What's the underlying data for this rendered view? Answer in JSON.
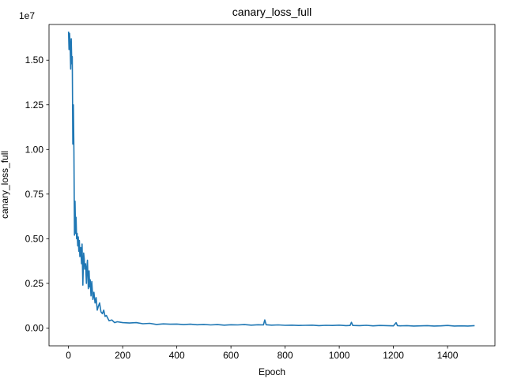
{
  "chart_data": {
    "type": "line",
    "title": "canary_loss_full",
    "xlabel": "Epoch",
    "ylabel": "canary_loss_full",
    "y_offset_text": "1e7",
    "xlim": [
      -72,
      1575
    ],
    "ylim": [
      -1000000,
      17000000
    ],
    "x_ticks": [
      0,
      200,
      400,
      600,
      800,
      1000,
      1200,
      1400
    ],
    "x_tick_labels": [
      "0",
      "200",
      "400",
      "600",
      "800",
      "1000",
      "1200",
      "1400"
    ],
    "y_ticks": [
      0,
      2500000,
      5000000,
      7500000,
      10000000,
      12500000,
      15000000
    ],
    "y_tick_labels": [
      "0.00",
      "0.25",
      "0.50",
      "0.75",
      "1.00",
      "1.25",
      "1.50"
    ],
    "grid": false,
    "series": [
      {
        "color": "#1f77b4",
        "x": [
          0,
          2,
          4,
          6,
          8,
          10,
          12,
          14,
          16,
          18,
          20,
          22,
          24,
          26,
          28,
          30,
          32,
          34,
          36,
          38,
          40,
          42,
          45,
          48,
          50,
          53,
          56,
          58,
          60,
          63,
          66,
          68,
          70,
          73,
          76,
          78,
          80,
          83,
          86,
          90,
          94,
          98,
          102,
          106,
          110,
          115,
          120,
          125,
          130,
          135,
          140,
          150,
          160,
          170,
          180,
          200,
          225,
          250,
          275,
          300,
          325,
          350,
          375,
          400,
          425,
          450,
          475,
          500,
          525,
          550,
          575,
          600,
          625,
          650,
          675,
          700,
          720,
          725,
          730,
          750,
          775,
          800,
          825,
          850,
          875,
          900,
          925,
          950,
          975,
          1000,
          1025,
          1040,
          1045,
          1050,
          1075,
          1100,
          1125,
          1150,
          1175,
          1200,
          1210,
          1215,
          1225,
          1250,
          1275,
          1300,
          1325,
          1350,
          1375,
          1400,
          1425,
          1450,
          1475,
          1500
        ],
        "y": [
          16600000,
          15600000,
          16500000,
          15800000,
          14500000,
          16200000,
          14800000,
          15200000,
          10300000,
          12500000,
          9900000,
          5200000,
          7100000,
          5300000,
          6200000,
          5000000,
          5300000,
          4600000,
          5100000,
          4300000,
          4900000,
          4000000,
          4500000,
          3600000,
          4700000,
          2400000,
          4200000,
          3900000,
          3300000,
          3600000,
          2500000,
          3400000,
          3800000,
          2200000,
          3200000,
          2300000,
          2700000,
          1800000,
          2600000,
          1600000,
          2000000,
          1400000,
          1700000,
          1000000,
          1200000,
          1400000,
          900000,
          800000,
          1000000,
          650000,
          700000,
          400000,
          450000,
          300000,
          350000,
          300000,
          280000,
          300000,
          240000,
          260000,
          200000,
          230000,
          210000,
          220000,
          190000,
          210000,
          180000,
          200000,
          170000,
          190000,
          160000,
          180000,
          170000,
          190000,
          160000,
          180000,
          170000,
          450000,
          180000,
          160000,
          170000,
          150000,
          160000,
          140000,
          150000,
          160000,
          130000,
          150000,
          140000,
          160000,
          130000,
          140000,
          320000,
          140000,
          130000,
          150000,
          120000,
          140000,
          130000,
          120000,
          300000,
          130000,
          120000,
          130000,
          110000,
          120000,
          130000,
          110000,
          120000,
          140000,
          110000,
          120000,
          110000,
          130000
        ]
      }
    ]
  }
}
